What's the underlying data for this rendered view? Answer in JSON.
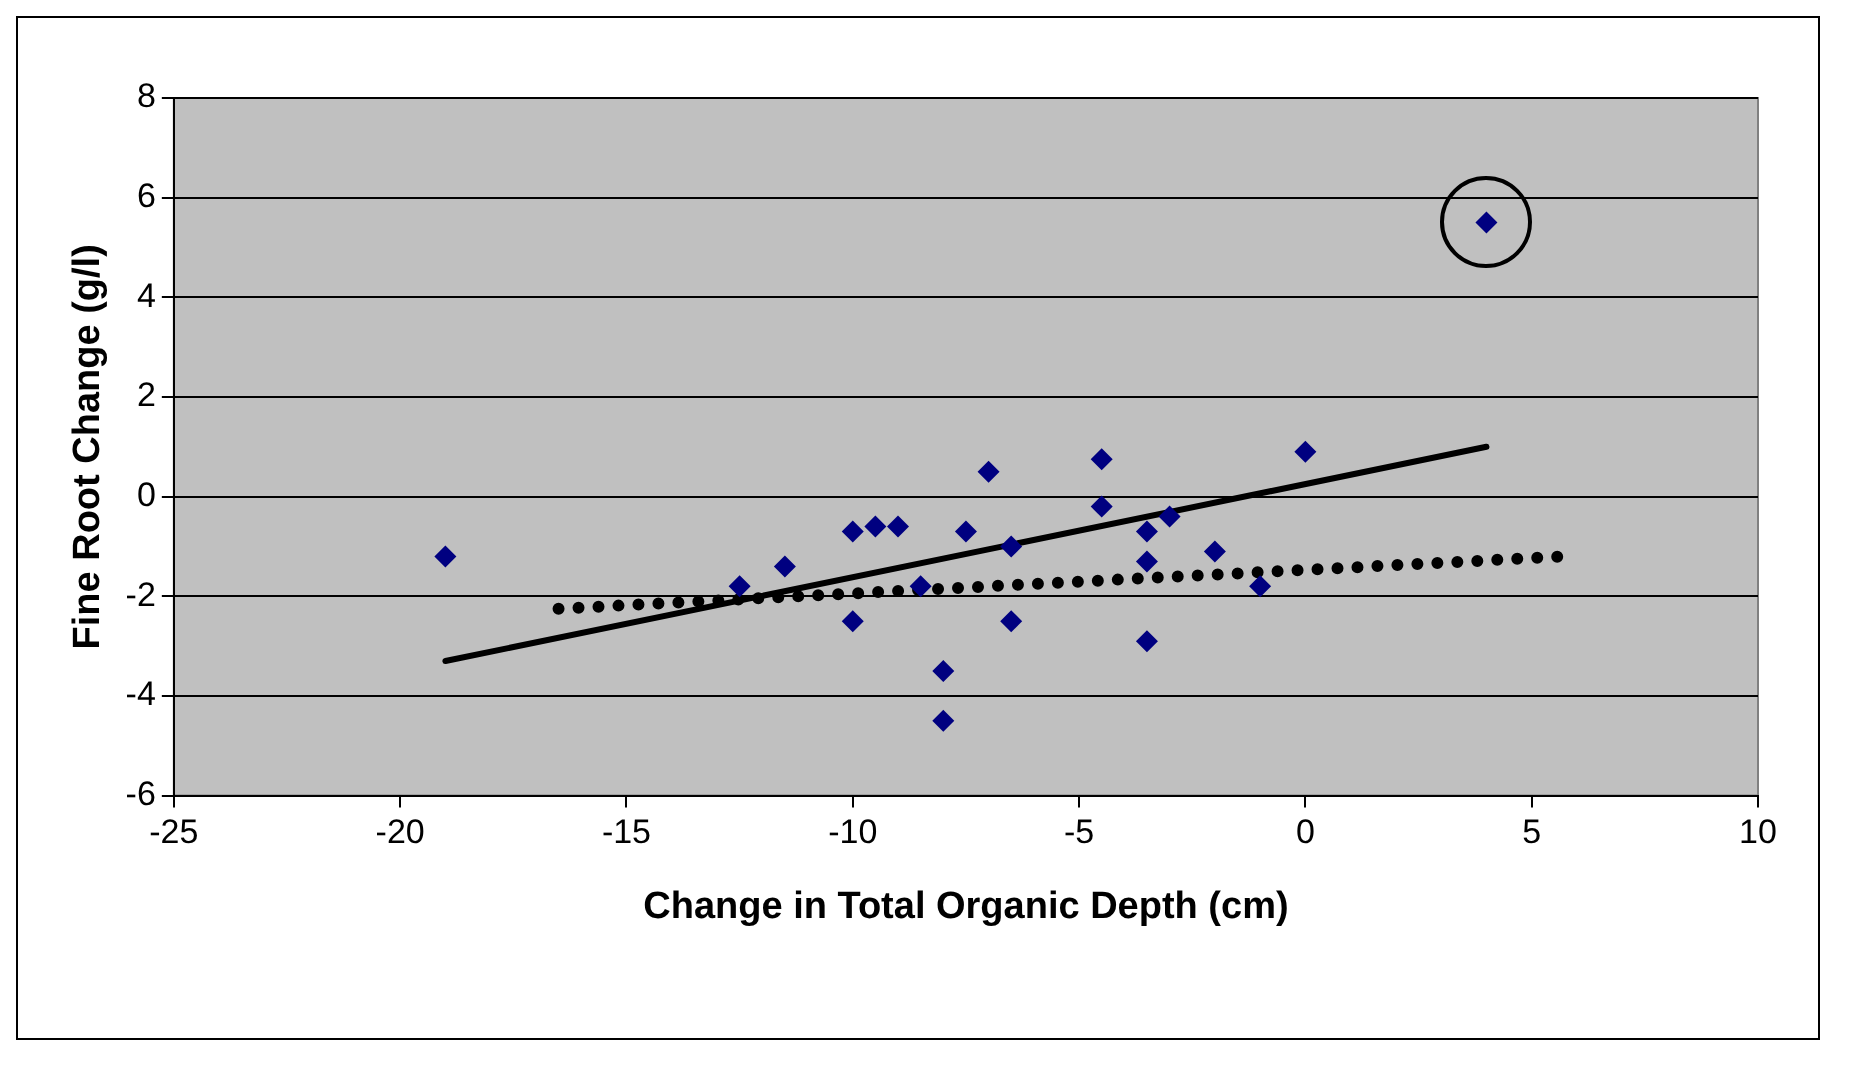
{
  "chart_data": {
    "type": "scatter",
    "xlabel": "Change in Total Organic Depth (cm)",
    "ylabel": "Fine Root Change (g/l)",
    "xlim": [
      -25,
      10
    ],
    "xticks": [
      -25,
      -20,
      -15,
      -10,
      -5,
      0,
      5,
      10
    ],
    "ylim": [
      -6,
      8
    ],
    "yticks": [
      -6,
      -4,
      -2,
      0,
      2,
      4,
      6,
      8
    ],
    "grid": "y",
    "legend": false,
    "marker": "diamond",
    "series": [
      {
        "color": "#000080",
        "x": [
          -19,
          -12.5,
          -11.5,
          -10,
          -10,
          -9.5,
          -9,
          -8.5,
          -8,
          -8,
          -7.5,
          -7,
          -6.5,
          -6.5,
          -4.5,
          -4.5,
          -3.5,
          -3.5,
          -3.5,
          -3,
          -2,
          -1,
          0,
          4
        ],
        "values": [
          -1.2,
          -1.8,
          -1.4,
          -0.7,
          -2.5,
          -0.6,
          -0.6,
          -1.8,
          -3.5,
          -4.5,
          -0.7,
          0.5,
          -1.0,
          -2.5,
          0.75,
          -0.2,
          -0.7,
          -1.3,
          -2.9,
          -0.4,
          -1.1,
          -1.8,
          0.9,
          5.5
        ]
      },
      {
        "type": "line",
        "color": "#000000",
        "marker": "none",
        "line_style": "solid",
        "x": [
          -19,
          4
        ],
        "values": [
          -3.3,
          1.0
        ]
      },
      {
        "type": "line",
        "color": "#000000",
        "marker": "none",
        "line_style": "dotted",
        "x": [
          -16.5,
          5.7
        ],
        "values": [
          -2.25,
          -1.2
        ]
      }
    ]
  }
}
